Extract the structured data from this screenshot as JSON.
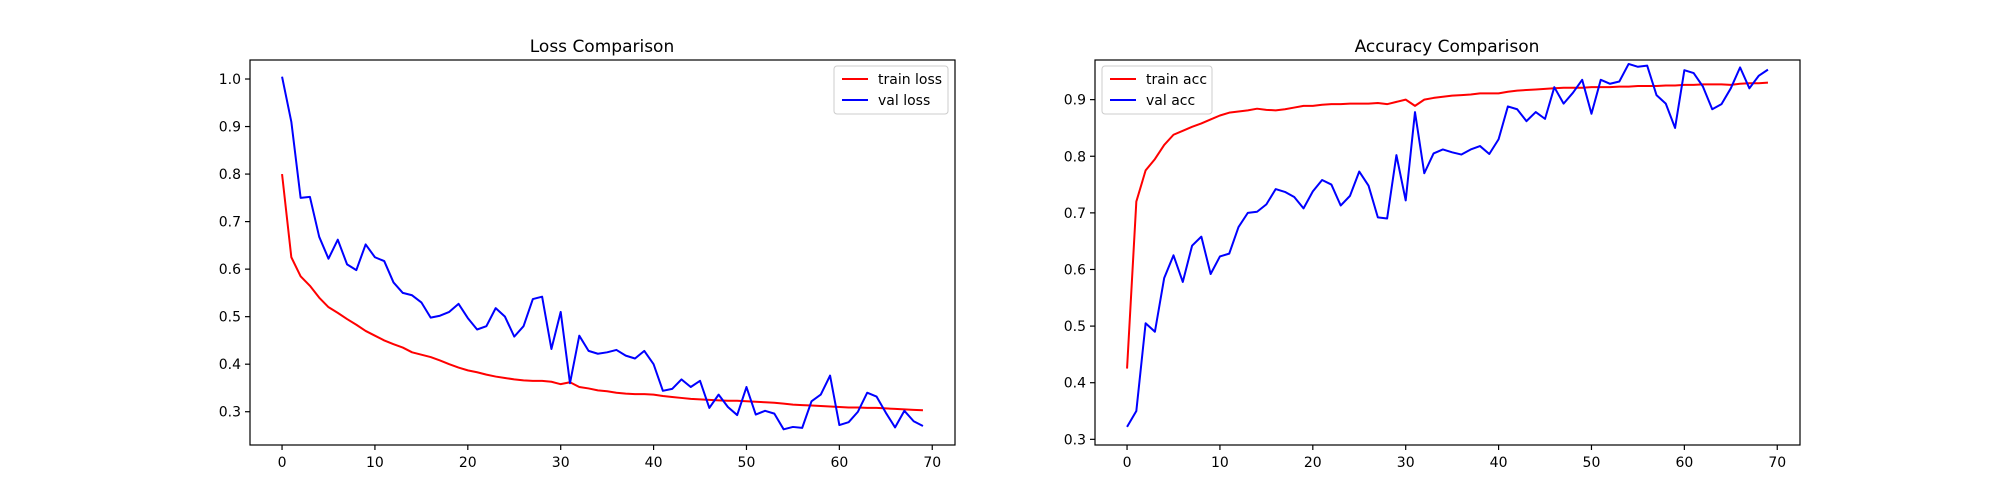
{
  "chart_data": [
    {
      "type": "line",
      "title": "Loss Comparison",
      "xlabel": "",
      "ylabel": "",
      "xlim": [
        -3.45,
        72.45
      ],
      "ylim": [
        0.23,
        1.04
      ],
      "x_ticks": [
        0,
        10,
        20,
        30,
        40,
        50,
        60,
        70
      ],
      "y_ticks": [
        0.3,
        0.4,
        0.5,
        0.6,
        0.7,
        0.8,
        0.9,
        1.0
      ],
      "x_tick_labels": [
        "0",
        "10",
        "20",
        "30",
        "40",
        "50",
        "60",
        "70"
      ],
      "y_tick_labels": [
        "0.3",
        "0.4",
        "0.5",
        "0.6",
        "0.7",
        "0.8",
        "0.9",
        "1.0"
      ],
      "grid": false,
      "legend_position": "upper right",
      "series": [
        {
          "name": "train loss",
          "color": "#ff0000",
          "x": [
            0,
            1,
            2,
            3,
            4,
            5,
            6,
            7,
            8,
            9,
            10,
            11,
            12,
            13,
            14,
            15,
            16,
            17,
            18,
            19,
            20,
            21,
            22,
            23,
            24,
            25,
            26,
            27,
            28,
            29,
            30,
            31,
            32,
            33,
            34,
            35,
            36,
            37,
            38,
            39,
            40,
            41,
            42,
            43,
            44,
            45,
            46,
            47,
            48,
            49,
            50,
            51,
            52,
            53,
            54,
            55,
            56,
            57,
            58,
            59,
            60,
            61,
            62,
            63,
            64,
            65,
            66,
            67,
            68,
            69
          ],
          "values": [
            0.8,
            0.625,
            0.585,
            0.565,
            0.54,
            0.52,
            0.508,
            0.495,
            0.483,
            0.47,
            0.46,
            0.45,
            0.442,
            0.435,
            0.425,
            0.42,
            0.415,
            0.408,
            0.4,
            0.393,
            0.387,
            0.383,
            0.378,
            0.374,
            0.371,
            0.368,
            0.366,
            0.365,
            0.365,
            0.363,
            0.358,
            0.362,
            0.352,
            0.349,
            0.345,
            0.343,
            0.34,
            0.338,
            0.337,
            0.337,
            0.336,
            0.333,
            0.331,
            0.329,
            0.327,
            0.326,
            0.325,
            0.324,
            0.323,
            0.323,
            0.322,
            0.321,
            0.32,
            0.319,
            0.317,
            0.315,
            0.314,
            0.313,
            0.312,
            0.311,
            0.31,
            0.309,
            0.309,
            0.308,
            0.308,
            0.307,
            0.306,
            0.305,
            0.304,
            0.303
          ]
        },
        {
          "name": "val loss",
          "color": "#0000ff",
          "x": [
            0,
            1,
            2,
            3,
            4,
            5,
            6,
            7,
            8,
            9,
            10,
            11,
            12,
            13,
            14,
            15,
            16,
            17,
            18,
            19,
            20,
            21,
            22,
            23,
            24,
            25,
            26,
            27,
            28,
            29,
            30,
            31,
            32,
            33,
            34,
            35,
            36,
            37,
            38,
            39,
            40,
            41,
            42,
            43,
            44,
            45,
            46,
            47,
            48,
            49,
            50,
            51,
            52,
            53,
            54,
            55,
            56,
            57,
            58,
            59,
            60,
            61,
            62,
            63,
            64,
            65,
            66,
            67,
            68,
            69
          ],
          "values": [
            1.005,
            0.91,
            0.75,
            0.752,
            0.668,
            0.622,
            0.662,
            0.61,
            0.598,
            0.652,
            0.625,
            0.617,
            0.572,
            0.55,
            0.545,
            0.53,
            0.498,
            0.502,
            0.51,
            0.527,
            0.497,
            0.473,
            0.48,
            0.518,
            0.5,
            0.458,
            0.48,
            0.537,
            0.542,
            0.432,
            0.51,
            0.36,
            0.46,
            0.428,
            0.422,
            0.425,
            0.43,
            0.418,
            0.412,
            0.428,
            0.4,
            0.344,
            0.348,
            0.368,
            0.352,
            0.365,
            0.308,
            0.336,
            0.31,
            0.293,
            0.352,
            0.294,
            0.302,
            0.296,
            0.263,
            0.268,
            0.266,
            0.322,
            0.336,
            0.376,
            0.272,
            0.278,
            0.3,
            0.34,
            0.332,
            0.298,
            0.267,
            0.302,
            0.28,
            0.27
          ]
        }
      ]
    },
    {
      "type": "line",
      "title": "Accuracy Comparison",
      "xlabel": "",
      "ylabel": "",
      "xlim": [
        -3.45,
        72.45
      ],
      "ylim": [
        0.29,
        0.97
      ],
      "x_ticks": [
        0,
        10,
        20,
        30,
        40,
        50,
        60,
        70
      ],
      "y_ticks": [
        0.3,
        0.4,
        0.5,
        0.6,
        0.7,
        0.8,
        0.9
      ],
      "x_tick_labels": [
        "0",
        "10",
        "20",
        "30",
        "40",
        "50",
        "60",
        "70"
      ],
      "y_tick_labels": [
        "0.3",
        "0.4",
        "0.5",
        "0.6",
        "0.7",
        "0.8",
        "0.9"
      ],
      "grid": false,
      "legend_position": "upper left",
      "series": [
        {
          "name": "train acc",
          "color": "#ff0000",
          "x": [
            0,
            1,
            2,
            3,
            4,
            5,
            6,
            7,
            8,
            9,
            10,
            11,
            12,
            13,
            14,
            15,
            16,
            17,
            18,
            19,
            20,
            21,
            22,
            23,
            24,
            25,
            26,
            27,
            28,
            29,
            30,
            31,
            32,
            33,
            34,
            35,
            36,
            37,
            38,
            39,
            40,
            41,
            42,
            43,
            44,
            45,
            46,
            47,
            48,
            49,
            50,
            51,
            52,
            53,
            54,
            55,
            56,
            57,
            58,
            59,
            60,
            61,
            62,
            63,
            64,
            65,
            66,
            67,
            68,
            69
          ],
          "values": [
            0.425,
            0.72,
            0.775,
            0.795,
            0.82,
            0.838,
            0.845,
            0.852,
            0.858,
            0.865,
            0.872,
            0.877,
            0.879,
            0.881,
            0.884,
            0.882,
            0.881,
            0.883,
            0.886,
            0.889,
            0.889,
            0.891,
            0.892,
            0.892,
            0.893,
            0.893,
            0.893,
            0.894,
            0.892,
            0.896,
            0.9,
            0.889,
            0.9,
            0.903,
            0.905,
            0.907,
            0.908,
            0.909,
            0.911,
            0.911,
            0.911,
            0.914,
            0.916,
            0.917,
            0.918,
            0.919,
            0.92,
            0.921,
            0.921,
            0.921,
            0.922,
            0.922,
            0.922,
            0.923,
            0.923,
            0.924,
            0.924,
            0.924,
            0.925,
            0.925,
            0.926,
            0.926,
            0.927,
            0.927,
            0.927,
            0.926,
            0.928,
            0.929,
            0.929,
            0.93
          ]
        },
        {
          "name": "val acc",
          "color": "#0000ff",
          "x": [
            0,
            1,
            2,
            3,
            4,
            5,
            6,
            7,
            8,
            9,
            10,
            11,
            12,
            13,
            14,
            15,
            16,
            17,
            18,
            19,
            20,
            21,
            22,
            23,
            24,
            25,
            26,
            27,
            28,
            29,
            30,
            31,
            32,
            33,
            34,
            35,
            36,
            37,
            38,
            39,
            40,
            41,
            42,
            43,
            44,
            45,
            46,
            47,
            48,
            49,
            50,
            51,
            52,
            53,
            54,
            55,
            56,
            57,
            58,
            59,
            60,
            61,
            62,
            63,
            64,
            65,
            66,
            67,
            68,
            69
          ],
          "values": [
            0.322,
            0.35,
            0.505,
            0.49,
            0.585,
            0.625,
            0.578,
            0.642,
            0.658,
            0.592,
            0.623,
            0.628,
            0.675,
            0.7,
            0.702,
            0.715,
            0.742,
            0.737,
            0.728,
            0.708,
            0.738,
            0.758,
            0.75,
            0.713,
            0.73,
            0.773,
            0.748,
            0.692,
            0.69,
            0.802,
            0.722,
            0.878,
            0.77,
            0.805,
            0.812,
            0.807,
            0.803,
            0.812,
            0.818,
            0.804,
            0.83,
            0.888,
            0.883,
            0.862,
            0.878,
            0.866,
            0.922,
            0.893,
            0.912,
            0.935,
            0.875,
            0.935,
            0.928,
            0.932,
            0.963,
            0.958,
            0.96,
            0.908,
            0.893,
            0.85,
            0.952,
            0.947,
            0.923,
            0.883,
            0.892,
            0.92,
            0.957,
            0.92,
            0.942,
            0.953
          ]
        }
      ]
    }
  ]
}
